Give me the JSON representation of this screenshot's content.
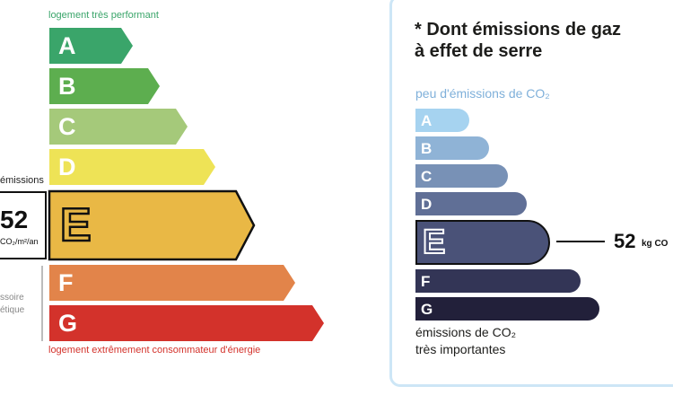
{
  "dpe": {
    "top_label": "logement très performant",
    "bottom_label": "logement extrêmement consommateur d'énergie",
    "classes": [
      {
        "letter": "A",
        "color": "#3aa56a"
      },
      {
        "letter": "B",
        "color": "#5dae4f"
      },
      {
        "letter": "C",
        "color": "#a5c97a"
      },
      {
        "letter": "D",
        "color": "#eee356"
      },
      {
        "letter": "E",
        "color": "#e9b845"
      },
      {
        "letter": "F",
        "color": "#e2844a"
      },
      {
        "letter": "G",
        "color": "#d3322b"
      }
    ],
    "active_class": "E",
    "side_label": "émissions",
    "value": "52",
    "unit": "CO₂/m²/an",
    "side_text_1": "ssoire",
    "side_text_2": "étique"
  },
  "ges": {
    "title_line1": "* Dont émissions de gaz",
    "title_line2": "à effet de serre",
    "top_label": "peu d'émissions de CO₂",
    "bottom_label_line1": "émissions de CO₂",
    "bottom_label_line2": "très importantes",
    "classes": [
      {
        "letter": "A",
        "color": "#a6d3f0"
      },
      {
        "letter": "B",
        "color": "#8fb3d6"
      },
      {
        "letter": "C",
        "color": "#7891b6"
      },
      {
        "letter": "D",
        "color": "#606f96"
      },
      {
        "letter": "E",
        "color": "#4a5278"
      },
      {
        "letter": "F",
        "color": "#333556"
      },
      {
        "letter": "G",
        "color": "#22203a"
      }
    ],
    "active_class": "E",
    "value": "52",
    "unit": "kg CO"
  }
}
